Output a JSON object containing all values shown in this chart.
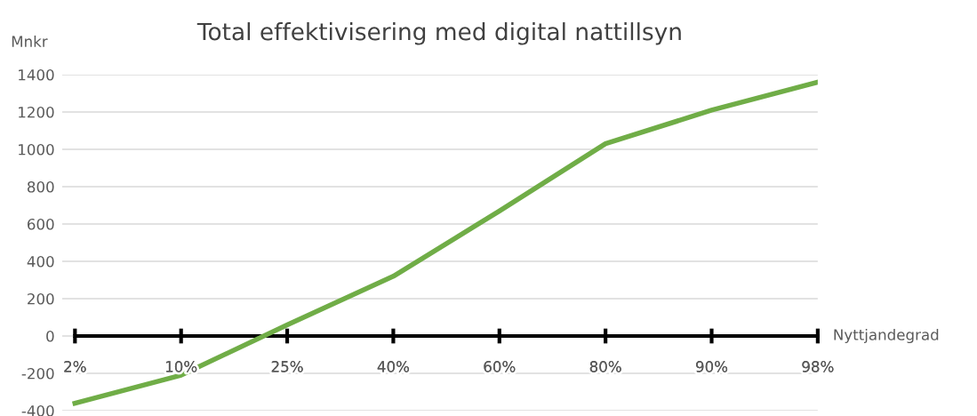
{
  "chart_data": {
    "type": "line",
    "title": "Total effektivisering med digital nattillsyn",
    "xlabel": "Nyttjandegrad",
    "ylabel": "Mnkr",
    "categories": [
      "2%",
      "10%",
      "25%",
      "40%",
      "60%",
      "80%",
      "90%",
      "98%"
    ],
    "series": [
      {
        "color": "#70ad47",
        "values": [
          -360,
          -210,
          60,
          320,
          670,
          1030,
          1210,
          1360
        ]
      }
    ],
    "ylim": [
      -400,
      1400
    ],
    "yticks": [
      -400,
      -200,
      0,
      200,
      400,
      600,
      800,
      1000,
      1200,
      1400
    ],
    "grid": "y",
    "marker": "none",
    "line_style": "solid"
  }
}
